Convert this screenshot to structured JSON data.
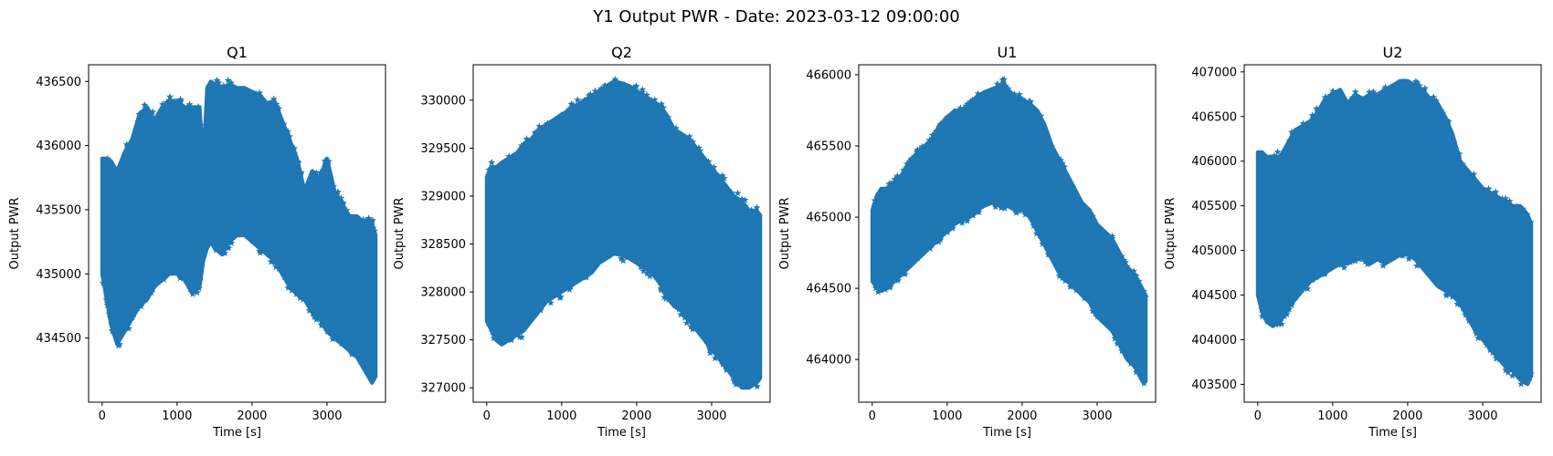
{
  "figure": {
    "title": "Y1 Output PWR - Date: 2023-03-12 09:00:00"
  },
  "chart_data": [
    {
      "type": "scatter",
      "title": "Q1",
      "xlabel": "Time [s]",
      "ylabel": "Output PWR",
      "marker": "star",
      "color": "#1f77b4",
      "xlim": [
        -180,
        3780
      ],
      "ylim": [
        434000,
        436630
      ],
      "xticks": [
        0,
        1000,
        2000,
        3000
      ],
      "yticks": [
        434500,
        435000,
        435500,
        436000,
        436500
      ],
      "envelope": {
        "x": [
          0,
          60,
          120,
          200,
          300,
          400,
          500,
          600,
          700,
          800,
          900,
          1000,
          1100,
          1200,
          1300,
          1350,
          1400,
          1450,
          1500,
          1600,
          1700,
          1800,
          1900,
          2000,
          2100,
          2200,
          2300,
          2400,
          2500,
          2600,
          2700,
          2800,
          2900,
          3000,
          3100,
          3200,
          3300,
          3400,
          3500,
          3600,
          3650
        ],
        "upper": [
          435900,
          435900,
          435880,
          435800,
          435950,
          436050,
          436250,
          436300,
          436200,
          436300,
          436350,
          436350,
          436300,
          436300,
          436300,
          435900,
          436450,
          436500,
          436480,
          436450,
          436480,
          436450,
          436450,
          436420,
          436400,
          436330,
          436350,
          436200,
          436050,
          435900,
          435650,
          435800,
          435750,
          435900,
          435650,
          435550,
          435450,
          435450,
          435400,
          435400,
          435300
        ],
        "lower": [
          435000,
          434800,
          434600,
          434450,
          434550,
          434650,
          434750,
          434800,
          434900,
          434950,
          435000,
          435000,
          434950,
          434850,
          434900,
          435100,
          435200,
          435250,
          435200,
          435150,
          435250,
          435300,
          435300,
          435250,
          435200,
          435150,
          435100,
          435000,
          434900,
          434850,
          434800,
          434700,
          434650,
          434550,
          434500,
          434450,
          434400,
          434350,
          434250,
          434150,
          434200
        ]
      }
    },
    {
      "type": "scatter",
      "title": "Q2",
      "xlabel": "Time [s]",
      "ylabel": "Output PWR",
      "marker": "star",
      "color": "#1f77b4",
      "xlim": [
        -180,
        3780
      ],
      "ylim": [
        326850,
        330370
      ],
      "xticks": [
        0,
        1000,
        2000,
        3000
      ],
      "yticks": [
        327000,
        327500,
        328000,
        328500,
        329000,
        329500,
        330000
      ],
      "envelope": {
        "x": [
          0,
          60,
          120,
          200,
          300,
          400,
          500,
          600,
          700,
          800,
          900,
          1000,
          1100,
          1200,
          1300,
          1400,
          1500,
          1600,
          1700,
          1800,
          1900,
          2000,
          2100,
          2200,
          2300,
          2400,
          2500,
          2600,
          2700,
          2800,
          2900,
          3000,
          3100,
          3200,
          3300,
          3400,
          3500,
          3600,
          3650
        ],
        "upper": [
          329200,
          329300,
          329300,
          329350,
          329400,
          329450,
          329550,
          329600,
          329700,
          329750,
          329800,
          329850,
          329900,
          329950,
          330000,
          330050,
          330100,
          330150,
          330200,
          330180,
          330150,
          330100,
          330050,
          330000,
          329950,
          329850,
          329700,
          329650,
          329600,
          329500,
          329400,
          329300,
          329200,
          329100,
          329000,
          328950,
          328850,
          328850,
          328800
        ],
        "lower": [
          327700,
          327600,
          327500,
          327450,
          327500,
          327550,
          327600,
          327700,
          327800,
          327900,
          327950,
          328000,
          328050,
          328100,
          328150,
          328200,
          328300,
          328350,
          328400,
          328380,
          328350,
          328300,
          328250,
          328200,
          328100,
          327950,
          327850,
          327800,
          327700,
          327600,
          327500,
          327400,
          327300,
          327200,
          327100,
          327000,
          327000,
          327050,
          327100
        ]
      }
    },
    {
      "type": "scatter",
      "title": "U1",
      "xlabel": "Time [s]",
      "ylabel": "Output PWR",
      "marker": "star",
      "color": "#1f77b4",
      "xlim": [
        -180,
        3780
      ],
      "ylim": [
        463700,
        466070
      ],
      "xticks": [
        0,
        1000,
        2000,
        3000
      ],
      "yticks": [
        464000,
        464500,
        465000,
        465500,
        466000
      ],
      "envelope": {
        "x": [
          0,
          60,
          120,
          200,
          300,
          400,
          500,
          600,
          700,
          800,
          900,
          1000,
          1100,
          1200,
          1300,
          1400,
          1500,
          1600,
          1700,
          1750,
          1800,
          1900,
          2000,
          2100,
          2200,
          2300,
          2400,
          2500,
          2600,
          2700,
          2800,
          2900,
          3000,
          3100,
          3200,
          3300,
          3400,
          3500,
          3600,
          3650
        ],
        "upper": [
          465050,
          465150,
          465200,
          465200,
          465250,
          465300,
          465400,
          465450,
          465500,
          465550,
          465650,
          465700,
          465750,
          465750,
          465800,
          465850,
          465880,
          465900,
          465920,
          465950,
          465900,
          465850,
          465830,
          465800,
          465750,
          465650,
          465500,
          465400,
          465300,
          465200,
          465100,
          465050,
          464950,
          464900,
          464850,
          464750,
          464650,
          464600,
          464500,
          464450
        ],
        "lower": [
          464550,
          464500,
          464480,
          464500,
          464550,
          464600,
          464650,
          464700,
          464750,
          464800,
          464850,
          464900,
          464950,
          464980,
          465000,
          465050,
          465080,
          465100,
          465080,
          465080,
          465080,
          465050,
          465050,
          465000,
          464900,
          464800,
          464700,
          464600,
          464550,
          464500,
          464450,
          464400,
          464300,
          464250,
          464200,
          464100,
          464000,
          463950,
          463850,
          463850
        ]
      }
    },
    {
      "type": "scatter",
      "title": "U2",
      "xlabel": "Time [s]",
      "ylabel": "Output PWR",
      "marker": "star",
      "color": "#1f77b4",
      "xlim": [
        -180,
        3780
      ],
      "ylim": [
        403300,
        407080
      ],
      "xticks": [
        0,
        1000,
        2000,
        3000
      ],
      "yticks": [
        403500,
        404000,
        404500,
        405000,
        405500,
        406000,
        406500,
        407000
      ],
      "envelope": {
        "x": [
          0,
          60,
          120,
          200,
          300,
          400,
          500,
          600,
          700,
          800,
          900,
          1000,
          1100,
          1200,
          1300,
          1400,
          1500,
          1600,
          1700,
          1800,
          1900,
          2000,
          2100,
          2200,
          2300,
          2400,
          2500,
          2600,
          2700,
          2800,
          2900,
          3000,
          3100,
          3200,
          3300,
          3400,
          3500,
          3600,
          3650
        ],
        "upper": [
          406100,
          406100,
          406050,
          406050,
          406050,
          406200,
          406350,
          406400,
          406450,
          406550,
          406700,
          406750,
          406800,
          406650,
          406750,
          406700,
          406750,
          406750,
          406800,
          406850,
          406900,
          406900,
          406850,
          406800,
          406700,
          406650,
          406500,
          406300,
          406000,
          405900,
          405800,
          405700,
          405650,
          405600,
          405550,
          405500,
          405500,
          405400,
          405300
        ],
        "lower": [
          404500,
          404300,
          404200,
          404150,
          404200,
          404350,
          404450,
          404550,
          404650,
          404700,
          404750,
          404800,
          404850,
          404850,
          404900,
          404950,
          404850,
          404900,
          404850,
          404900,
          404950,
          404950,
          404900,
          404800,
          404700,
          404600,
          404550,
          404500,
          404400,
          404250,
          404100,
          404000,
          403900,
          403800,
          403700,
          403650,
          403550,
          403500,
          403600
        ]
      }
    }
  ]
}
